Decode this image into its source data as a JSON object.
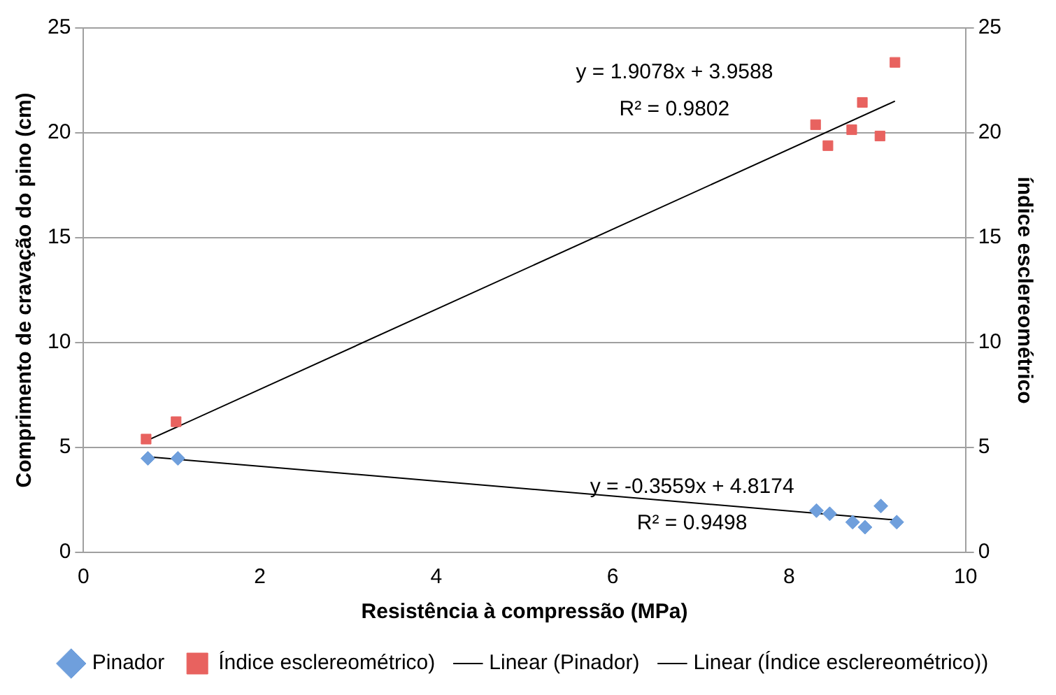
{
  "chart_data": {
    "type": "scatter",
    "xlabel": "Resistência à compressão (MPa)",
    "ylabel": "Comprimento de cravação do pino (cm)",
    "y2label": "índice esclereométrico",
    "xlim": [
      0,
      10
    ],
    "xticks": [
      0,
      2,
      4,
      6,
      8,
      10
    ],
    "ylim": [
      0,
      25
    ],
    "yticks": [
      0,
      5,
      10,
      15,
      20,
      25
    ],
    "y2lim": [
      0,
      25
    ],
    "y2ticks": [
      0,
      5,
      10,
      15,
      20,
      25
    ],
    "grid": "y",
    "legend": "bottom",
    "series": [
      {
        "name": "Pinador",
        "marker": "diamond",
        "color": "#6f9fdc",
        "x": [
          0.73,
          1.07,
          8.31,
          8.46,
          8.72,
          8.86,
          9.04,
          9.22
        ],
        "values": [
          4.48,
          4.48,
          1.99,
          1.84,
          1.44,
          1.2,
          2.21,
          1.44
        ]
      },
      {
        "name": "Índice esclereométrico)",
        "marker": "square",
        "color": "#e8625f",
        "x": [
          0.71,
          1.05,
          8.3,
          8.44,
          8.71,
          8.83,
          9.03,
          9.2
        ],
        "values": [
          5.4,
          6.23,
          20.39,
          19.39,
          20.15,
          21.45,
          19.85,
          23.36
        ]
      },
      {
        "name": "Linear (Pinador)",
        "type": "line",
        "marker": "none",
        "line_style": "solid",
        "color": "#000000",
        "x": [
          0.72,
          9.22
        ],
        "values": [
          4.56,
          1.54
        ]
      },
      {
        "name": "Linear (Índice esclereométrico))",
        "type": "line",
        "marker": "none",
        "line_style": "solid",
        "color": "#000000",
        "x": [
          0.71,
          9.2
        ],
        "values": [
          5.31,
          21.51
        ]
      }
    ],
    "annotations": [
      "y = 1.9078x + 3.9588",
      "R² = 0.9802",
      "y = -0.3559x + 4.8174",
      "R² = 0.9498"
    ]
  }
}
